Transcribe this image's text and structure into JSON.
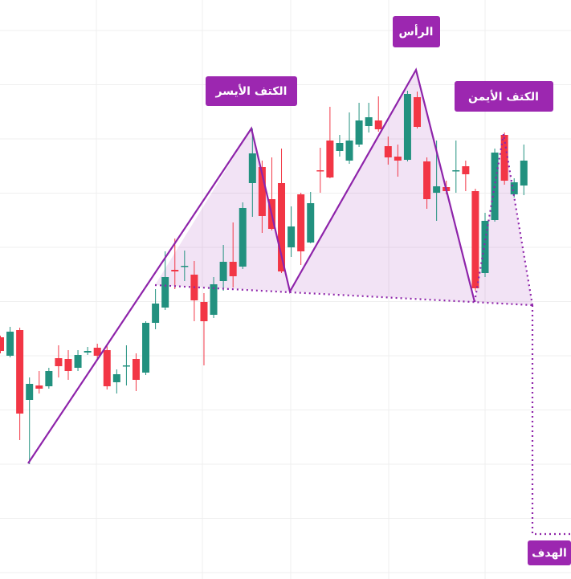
{
  "chart_data": {
    "type": "candlestick",
    "annotations": [
      "الكتف الأيسر",
      "الرأس",
      "الكتف الأيمن",
      "الهدف"
    ],
    "open": [
      300,
      277,
      309,
      222,
      240,
      239,
      274,
      273,
      262,
      281,
      287,
      284,
      244,
      264,
      273,
      256,
      318,
      337,
      384,
      388,
      378,
      344,
      328,
      370,
      394,
      388,
      492,
      512,
      472,
      492,
      412,
      478,
      418,
      508,
      545,
      532,
      520,
      540,
      563,
      570,
      538,
      525,
      521,
      599,
      519,
      480,
      487,
      507,
      513,
      482,
      380,
      446,
      552,
      478,
      489
    ],
    "high": [
      302,
      313,
      312,
      250,
      258,
      262,
      290,
      284,
      284,
      288,
      292,
      289,
      260,
      290,
      280,
      320,
      360,
      407,
      423,
      408,
      395,
      355,
      375,
      415,
      443,
      468,
      560,
      520,
      524,
      535,
      463,
      480,
      481,
      536,
      587,
      552,
      580,
      592,
      592,
      600,
      550,
      540,
      607,
      606,
      524,
      545,
      495,
      545,
      520,
      485,
      455,
      535,
      555,
      498,
      540
    ],
    "low": [
      280,
      275,
      172,
      142,
      230,
      236,
      250,
      247,
      258,
      278,
      273,
      235,
      230,
      240,
      233,
      253,
      310,
      334,
      360,
      370,
      320,
      265,
      324,
      358,
      362,
      385,
      450,
      430,
      433,
      380,
      400,
      390,
      417,
      480,
      498,
      525,
      516,
      537,
      555,
      556,
      515,
      500,
      519,
      560,
      460,
      445,
      478,
      480,
      482,
      358,
      375,
      444,
      490,
      474,
      477
    ],
    "close": [
      283,
      307,
      205,
      242,
      236,
      258,
      264,
      258,
      278,
      283,
      277,
      239,
      254,
      265,
      247,
      318,
      342,
      375,
      382,
      389,
      346,
      320,
      366,
      394,
      376,
      461,
      529,
      451,
      435,
      382,
      438,
      407,
      467,
      507,
      499,
      542,
      545,
      570,
      574,
      559,
      524,
      520,
      603,
      562,
      472,
      488,
      482,
      508,
      503,
      361,
      445,
      530,
      495,
      493,
      520
    ],
    "up_color": "#22917f",
    "down_color": "#f23645",
    "ylim": [
      0,
      720
    ],
    "grid": true
  }
}
